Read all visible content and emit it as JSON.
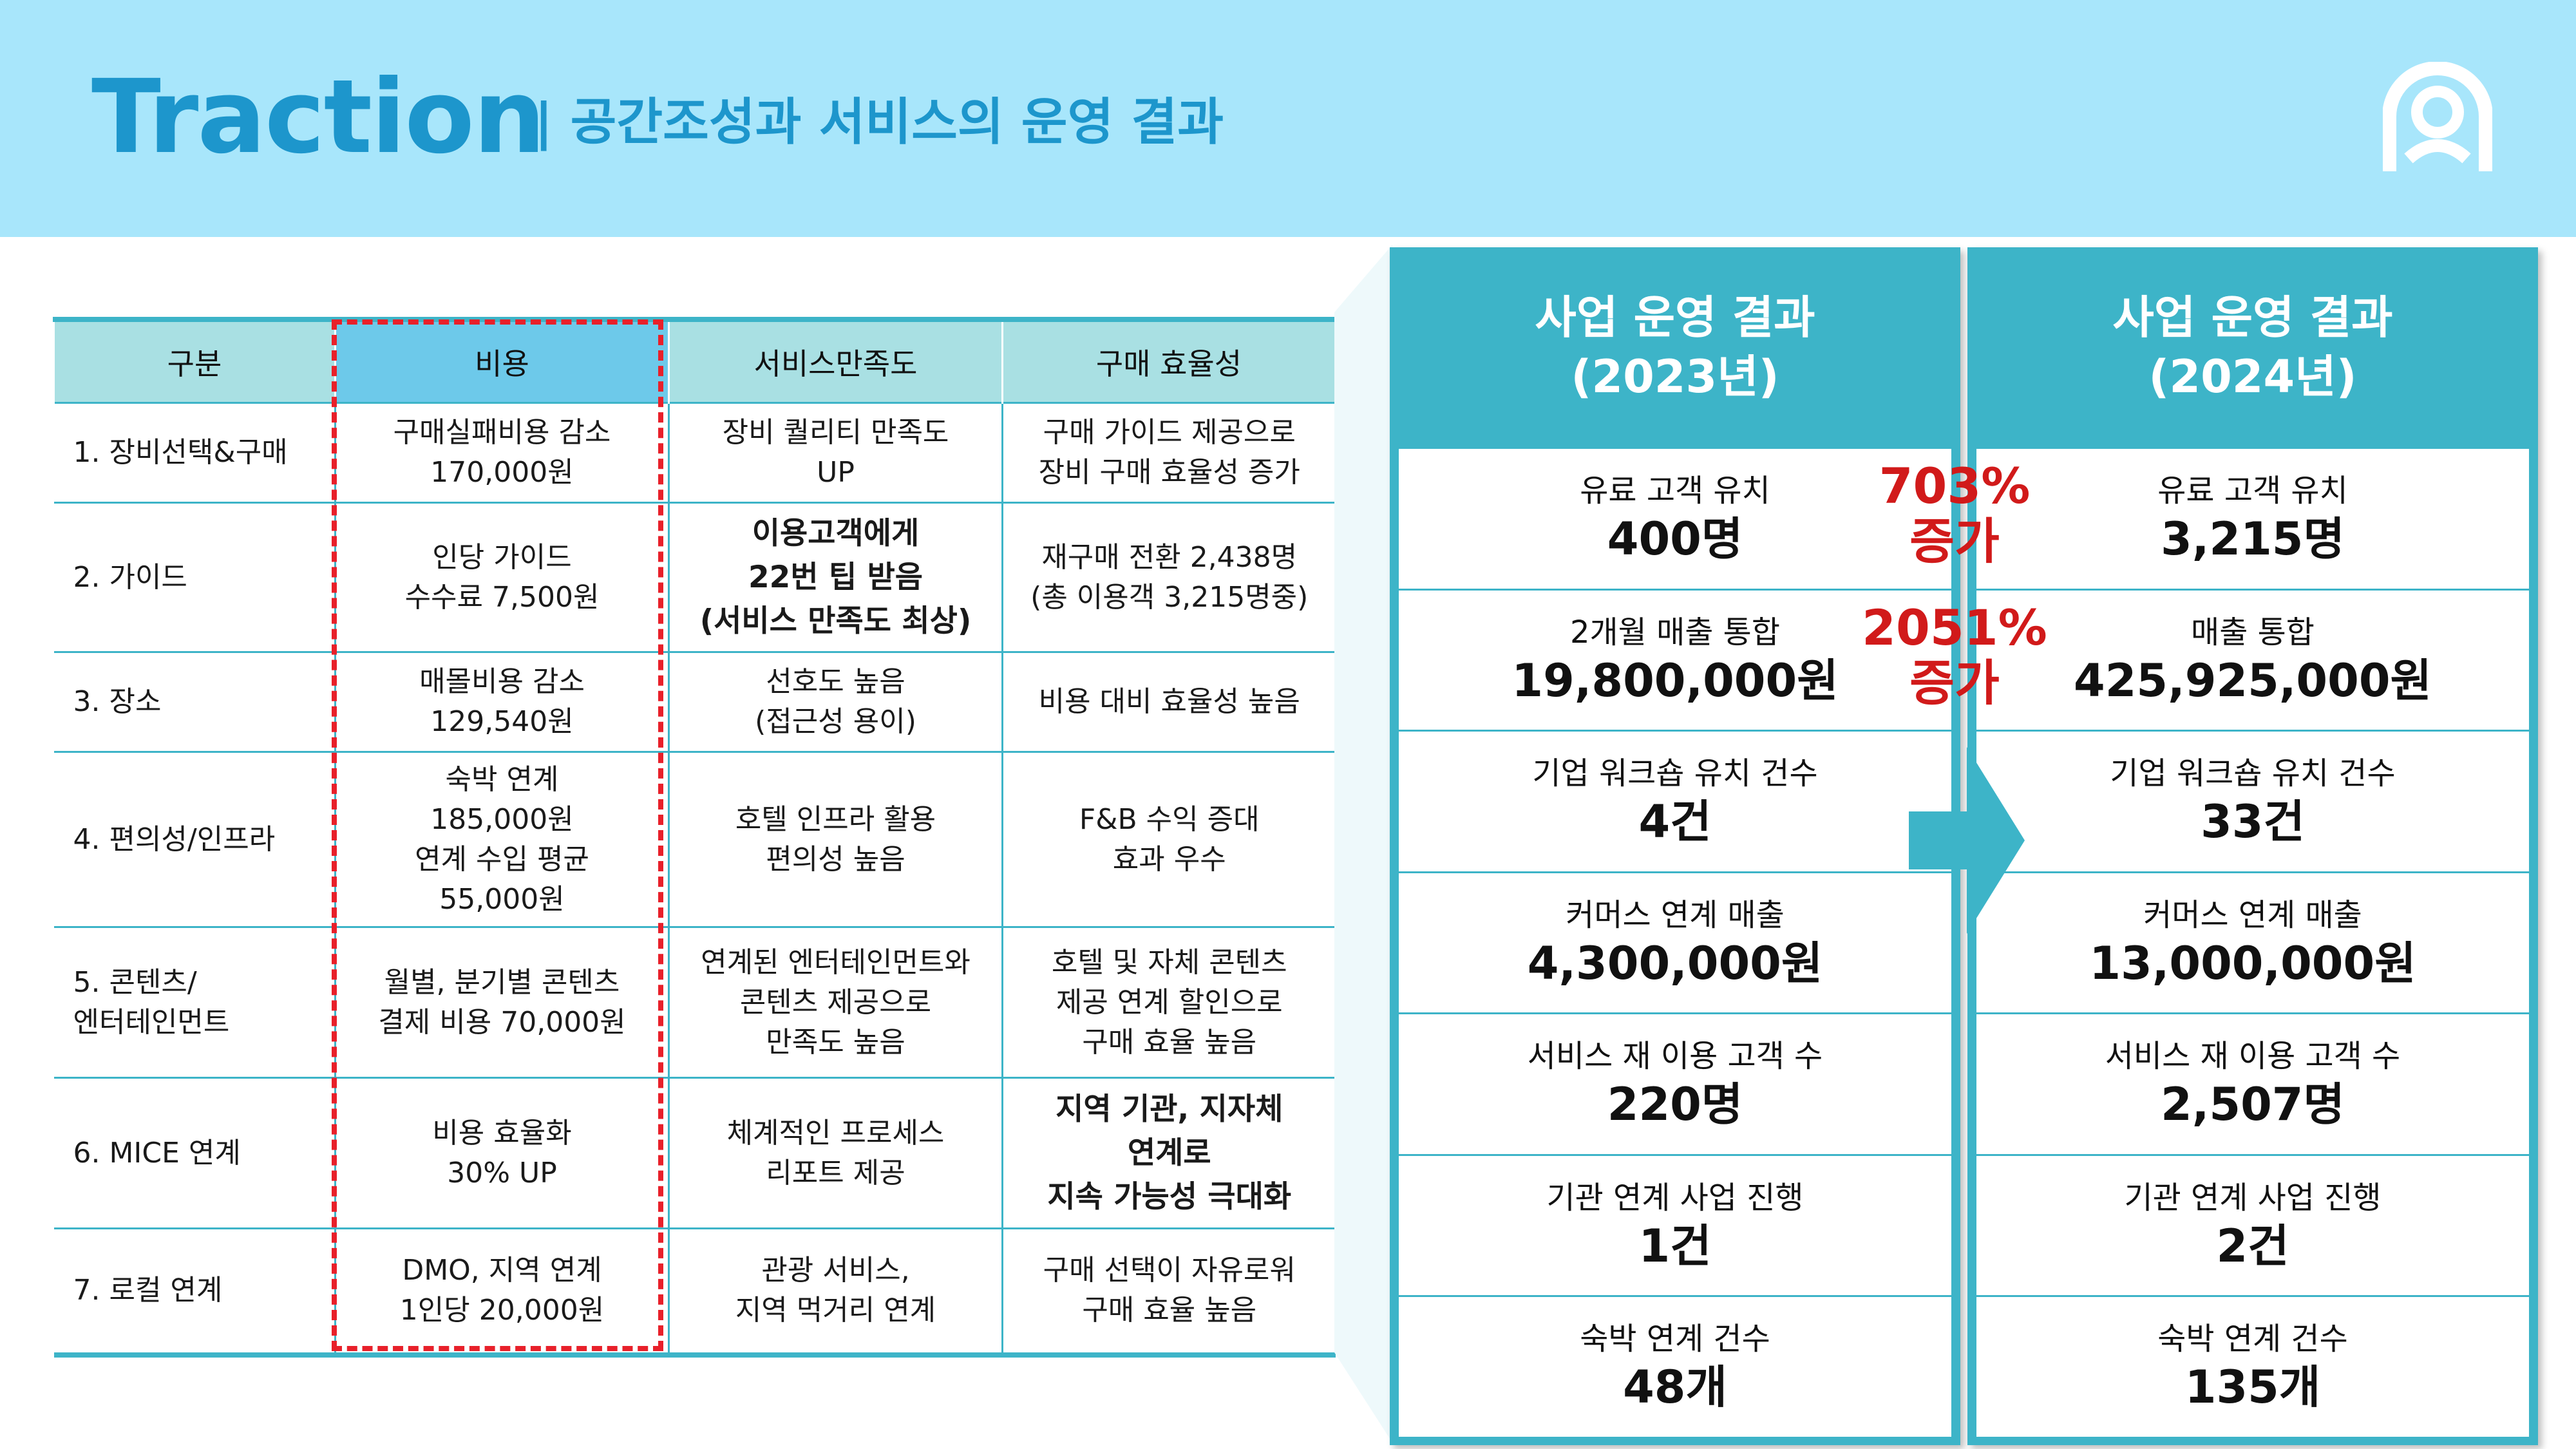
{
  "header": {
    "title": "Traction",
    "subtitle": "| 공간조성과 서비스의 운영 결과"
  },
  "colors": {
    "accent": "#3db4c8",
    "header_bg": "#a8e6fb",
    "title": "#1d96cc",
    "highlight": "#e8202a"
  },
  "table": {
    "headers": [
      "구분",
      "비용",
      "서비스만족도",
      "구매 효율성"
    ],
    "rows": [
      {
        "category": "1. 장비선택&구매",
        "cost": "구매실패비용 감소\n170,000원",
        "satisfaction": "장비 퀄리티 만족도\nUP",
        "efficiency": "구매 가이드 제공으로\n장비 구매 효율성 증가"
      },
      {
        "category": "2. 가이드",
        "cost": "인당 가이드\n수수료 7,500원",
        "satisfaction": "이용고객에게\n22번 팁 받음\n(서비스 만족도 최상)",
        "efficiency": "재구매 전환 2,438명\n(총 이용객 3,215명중)"
      },
      {
        "category": "3. 장소",
        "cost": "매몰비용 감소\n129,540원",
        "satisfaction": "선호도 높음\n(접근성 용이)",
        "efficiency": "비용 대비 효율성 높음"
      },
      {
        "category": "4. 편의성/인프라",
        "cost": "숙박 연계\n185,000원\n연계 수입 평균\n55,000원",
        "satisfaction": "호텔 인프라 활용\n편의성 높음",
        "efficiency": "F&B 수익 증대\n효과 우수"
      },
      {
        "category": "5. 콘텐츠/\n    엔터테인먼트",
        "cost": "월별, 분기별 콘텐츠\n결제 비용 70,000원",
        "satisfaction": "연계된 엔터테인먼트와\n콘텐츠 제공으로\n만족도 높음",
        "efficiency": "호텔 및 자체 콘텐츠\n제공 연계 할인으로\n구매 효율 높음"
      },
      {
        "category": "6. MICE 연계",
        "cost": "비용 효율화\n30% UP",
        "satisfaction": "체계적인 프로세스\n리포트 제공",
        "efficiency": "지역 기관, 지자체\n연계로\n지속 가능성 극대화"
      },
      {
        "category": "7. 로컬 연계",
        "cost": "DMO, 지역 연계\n1인당 20,000원",
        "satisfaction": "관광 서비스,\n지역 먹거리 연계",
        "efficiency": "구매 선택이 자유로워\n구매 효율 높음"
      }
    ]
  },
  "results_2023": {
    "title": "사업 운영 결과",
    "year": "(2023년)",
    "items": [
      {
        "label": "유료 고객 유치",
        "value": "400명"
      },
      {
        "label": "2개월 매출 통합",
        "value": "19,800,000원"
      },
      {
        "label": "기업 워크숍 유치 건수",
        "value": "4건"
      },
      {
        "label": "커머스 연계 매출",
        "value": "4,300,000원"
      },
      {
        "label": "서비스 재 이용 고객 수",
        "value": "220명"
      },
      {
        "label": "기관 연계 사업 진행",
        "value": "1건"
      },
      {
        "label": "숙박 연계 건수",
        "value": "48개"
      }
    ]
  },
  "results_2024": {
    "title": "사업 운영 결과",
    "year": "(2024년)",
    "items": [
      {
        "label": "유료 고객 유치",
        "value": "3,215명"
      },
      {
        "label": "매출 통합",
        "value": "425,925,000원"
      },
      {
        "label": "기업 워크숍 유치 건수",
        "value": "33건"
      },
      {
        "label": "커머스 연계 매출",
        "value": "13,000,000원"
      },
      {
        "label": "서비스 재 이용 고객 수",
        "value": "2,507명"
      },
      {
        "label": "기관 연계 사업 진행",
        "value": "2건"
      },
      {
        "label": "숙박 연계 건수",
        "value": "135개"
      }
    ]
  },
  "growth": [
    {
      "pct": "703%",
      "word": "증가"
    },
    {
      "pct": "2051%",
      "word": "증가"
    }
  ]
}
